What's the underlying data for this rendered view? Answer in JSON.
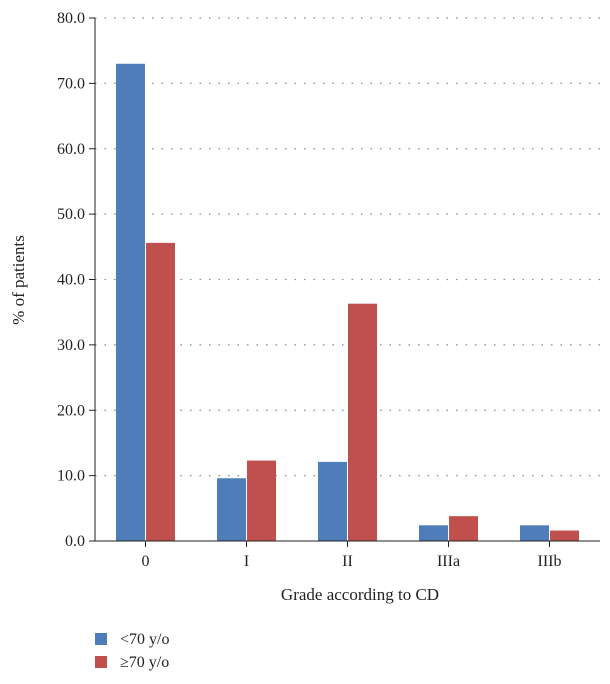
{
  "chart_data": {
    "type": "bar",
    "title": "",
    "xlabel": "Grade according to CD",
    "ylabel": "% of patients",
    "categories": [
      "0",
      "I",
      "II",
      "IIIa",
      "IIIb"
    ],
    "ylim": [
      0,
      80
    ],
    "yticks": [
      "0.0",
      "10.0",
      "20.0",
      "30.0",
      "40.0",
      "50.0",
      "60.0",
      "70.0",
      "80.0"
    ],
    "grid": "horizontal dotted",
    "legend_position": "bottom-left",
    "series": [
      {
        "name": "<70 y/o",
        "color": "#4f7dba",
        "values": [
          73.0,
          9.6,
          12.1,
          2.4,
          2.4
        ]
      },
      {
        "name": "≥70 y/o",
        "color": "#c0504d",
        "values": [
          45.6,
          12.3,
          36.3,
          3.8,
          1.6
        ]
      }
    ]
  }
}
